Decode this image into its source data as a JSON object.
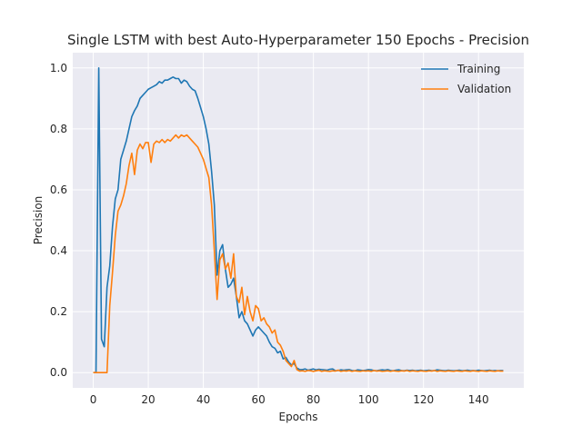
{
  "chart_data": {
    "type": "line",
    "title": "Single LSTM with best Auto-Hyperparameter 150 Epochs - Precision",
    "xlabel": "Epochs",
    "ylabel": "Precision",
    "xlim": [
      -7.45,
      156.45
    ],
    "ylim": [
      -0.05,
      1.05
    ],
    "xticks": [
      0,
      20,
      40,
      60,
      80,
      100,
      120,
      140
    ],
    "yticks": [
      0.0,
      0.2,
      0.4,
      0.6,
      0.8,
      1.0
    ],
    "ytick_labels": [
      "0.0",
      "0.2",
      "0.4",
      "0.6",
      "0.8",
      "1.0"
    ],
    "grid": true,
    "legend_position": "top-right",
    "series": [
      {
        "name": "Training",
        "color": "#1f77b4",
        "points": [
          [
            0,
            0.0
          ],
          [
            1,
            0.0
          ],
          [
            2,
            1.0
          ],
          [
            3,
            0.11
          ],
          [
            4,
            0.085
          ],
          [
            5,
            0.28
          ],
          [
            6,
            0.35
          ],
          [
            7,
            0.48
          ],
          [
            8,
            0.57
          ],
          [
            9,
            0.6
          ],
          [
            10,
            0.7
          ],
          [
            11,
            0.73
          ],
          [
            12,
            0.76
          ],
          [
            13,
            0.8
          ],
          [
            14,
            0.84
          ],
          [
            15,
            0.86
          ],
          [
            16,
            0.875
          ],
          [
            17,
            0.9
          ],
          [
            18,
            0.91
          ],
          [
            19,
            0.92
          ],
          [
            20,
            0.93
          ],
          [
            21,
            0.935
          ],
          [
            22,
            0.94
          ],
          [
            23,
            0.945
          ],
          [
            24,
            0.955
          ],
          [
            25,
            0.95
          ],
          [
            26,
            0.96
          ],
          [
            27,
            0.96
          ],
          [
            28,
            0.965
          ],
          [
            29,
            0.97
          ],
          [
            30,
            0.965
          ],
          [
            31,
            0.965
          ],
          [
            32,
            0.95
          ],
          [
            33,
            0.96
          ],
          [
            34,
            0.955
          ],
          [
            35,
            0.94
          ],
          [
            36,
            0.93
          ],
          [
            37,
            0.925
          ],
          [
            38,
            0.9
          ],
          [
            39,
            0.87
          ],
          [
            40,
            0.84
          ],
          [
            41,
            0.8
          ],
          [
            42,
            0.75
          ],
          [
            43,
            0.66
          ],
          [
            44,
            0.55
          ],
          [
            45,
            0.32
          ],
          [
            46,
            0.4
          ],
          [
            47,
            0.42
          ],
          [
            48,
            0.34
          ],
          [
            49,
            0.28
          ],
          [
            50,
            0.29
          ],
          [
            51,
            0.31
          ],
          [
            52,
            0.25
          ],
          [
            53,
            0.18
          ],
          [
            54,
            0.2
          ],
          [
            55,
            0.17
          ],
          [
            56,
            0.16
          ],
          [
            57,
            0.14
          ],
          [
            58,
            0.12
          ],
          [
            59,
            0.14
          ],
          [
            60,
            0.15
          ],
          [
            61,
            0.14
          ],
          [
            62,
            0.13
          ],
          [
            63,
            0.12
          ],
          [
            64,
            0.1
          ],
          [
            65,
            0.085
          ],
          [
            66,
            0.08
          ],
          [
            67,
            0.065
          ],
          [
            68,
            0.07
          ],
          [
            69,
            0.045
          ],
          [
            70,
            0.05
          ],
          [
            71,
            0.035
          ],
          [
            72,
            0.025
          ],
          [
            73,
            0.03
          ],
          [
            74,
            0.015
          ],
          [
            75,
            0.01
          ],
          [
            76,
            0.01
          ],
          [
            77,
            0.012
          ],
          [
            78,
            0.008
          ],
          [
            79,
            0.01
          ],
          [
            80,
            0.012
          ],
          [
            81,
            0.009
          ],
          [
            82,
            0.011
          ],
          [
            83,
            0.01
          ],
          [
            84,
            0.009
          ],
          [
            85,
            0.008
          ],
          [
            86,
            0.011
          ],
          [
            87,
            0.012
          ],
          [
            88,
            0.006
          ],
          [
            89,
            0.007
          ],
          [
            90,
            0.009
          ],
          [
            91,
            0.008
          ],
          [
            92,
            0.009
          ],
          [
            93,
            0.01
          ],
          [
            94,
            0.007
          ],
          [
            95,
            0.006
          ],
          [
            96,
            0.009
          ],
          [
            97,
            0.008
          ],
          [
            98,
            0.007
          ],
          [
            99,
            0.008
          ],
          [
            100,
            0.01
          ],
          [
            101,
            0.009
          ],
          [
            102,
            0.007
          ],
          [
            103,
            0.006
          ],
          [
            104,
            0.008
          ],
          [
            105,
            0.009
          ],
          [
            106,
            0.008
          ],
          [
            107,
            0.01
          ],
          [
            108,
            0.007
          ],
          [
            109,
            0.006
          ],
          [
            110,
            0.008
          ],
          [
            111,
            0.009
          ],
          [
            112,
            0.007
          ],
          [
            113,
            0.006
          ],
          [
            114,
            0.008
          ],
          [
            115,
            0.007
          ],
          [
            116,
            0.008
          ],
          [
            117,
            0.006
          ],
          [
            118,
            0.007
          ],
          [
            119,
            0.008
          ],
          [
            120,
            0.006
          ],
          [
            121,
            0.007
          ],
          [
            122,
            0.008
          ],
          [
            123,
            0.006
          ],
          [
            124,
            0.007
          ],
          [
            125,
            0.009
          ],
          [
            126,
            0.008
          ],
          [
            127,
            0.007
          ],
          [
            128,
            0.006
          ],
          [
            129,
            0.008
          ],
          [
            130,
            0.007
          ],
          [
            131,
            0.006
          ],
          [
            132,
            0.007
          ],
          [
            133,
            0.008
          ],
          [
            134,
            0.006
          ],
          [
            135,
            0.007
          ],
          [
            136,
            0.008
          ],
          [
            137,
            0.006
          ],
          [
            138,
            0.007
          ],
          [
            139,
            0.006
          ],
          [
            140,
            0.008
          ],
          [
            141,
            0.007
          ],
          [
            142,
            0.006
          ],
          [
            143,
            0.007
          ],
          [
            144,
            0.008
          ],
          [
            145,
            0.006
          ],
          [
            146,
            0.007
          ],
          [
            147,
            0.006
          ],
          [
            148,
            0.007
          ],
          [
            149,
            0.007
          ]
        ]
      },
      {
        "name": "Validation",
        "color": "#ff7f0e",
        "points": [
          [
            0,
            0.0
          ],
          [
            1,
            0.0
          ],
          [
            2,
            0.0
          ],
          [
            3,
            0.0
          ],
          [
            4,
            0.0
          ],
          [
            5,
            0.0
          ],
          [
            6,
            0.22
          ],
          [
            7,
            0.33
          ],
          [
            8,
            0.45
          ],
          [
            9,
            0.53
          ],
          [
            10,
            0.55
          ],
          [
            11,
            0.58
          ],
          [
            12,
            0.62
          ],
          [
            13,
            0.68
          ],
          [
            14,
            0.72
          ],
          [
            15,
            0.65
          ],
          [
            16,
            0.73
          ],
          [
            17,
            0.75
          ],
          [
            18,
            0.735
          ],
          [
            19,
            0.755
          ],
          [
            20,
            0.755
          ],
          [
            21,
            0.69
          ],
          [
            22,
            0.75
          ],
          [
            23,
            0.76
          ],
          [
            24,
            0.755
          ],
          [
            25,
            0.765
          ],
          [
            26,
            0.755
          ],
          [
            27,
            0.765
          ],
          [
            28,
            0.76
          ],
          [
            29,
            0.77
          ],
          [
            30,
            0.78
          ],
          [
            31,
            0.77
          ],
          [
            32,
            0.78
          ],
          [
            33,
            0.775
          ],
          [
            34,
            0.78
          ],
          [
            35,
            0.77
          ],
          [
            36,
            0.76
          ],
          [
            37,
            0.75
          ],
          [
            38,
            0.74
          ],
          [
            39,
            0.72
          ],
          [
            40,
            0.7
          ],
          [
            41,
            0.67
          ],
          [
            42,
            0.64
          ],
          [
            43,
            0.55
          ],
          [
            44,
            0.4
          ],
          [
            45,
            0.24
          ],
          [
            46,
            0.37
          ],
          [
            47,
            0.39
          ],
          [
            48,
            0.34
          ],
          [
            49,
            0.36
          ],
          [
            50,
            0.31
          ],
          [
            51,
            0.39
          ],
          [
            52,
            0.25
          ],
          [
            53,
            0.23
          ],
          [
            54,
            0.28
          ],
          [
            55,
            0.19
          ],
          [
            56,
            0.25
          ],
          [
            57,
            0.2
          ],
          [
            58,
            0.17
          ],
          [
            59,
            0.22
          ],
          [
            60,
            0.21
          ],
          [
            61,
            0.17
          ],
          [
            62,
            0.18
          ],
          [
            63,
            0.16
          ],
          [
            64,
            0.15
          ],
          [
            65,
            0.13
          ],
          [
            66,
            0.14
          ],
          [
            67,
            0.1
          ],
          [
            68,
            0.09
          ],
          [
            69,
            0.07
          ],
          [
            70,
            0.04
          ],
          [
            71,
            0.03
          ],
          [
            72,
            0.02
          ],
          [
            73,
            0.04
          ],
          [
            74,
            0.01
          ],
          [
            75,
            0.005
          ],
          [
            76,
            0.006
          ],
          [
            77,
            0.004
          ],
          [
            78,
            0.007
          ],
          [
            79,
            0.006
          ],
          [
            80,
            0.004
          ],
          [
            81,
            0.006
          ],
          [
            82,
            0.008
          ],
          [
            83,
            0.004
          ],
          [
            84,
            0.006
          ],
          [
            85,
            0.005
          ],
          [
            86,
            0.004
          ],
          [
            87,
            0.006
          ],
          [
            88,
            0.005
          ],
          [
            89,
            0.008
          ],
          [
            90,
            0.004
          ],
          [
            91,
            0.006
          ],
          [
            92,
            0.005
          ],
          [
            93,
            0.007
          ],
          [
            94,
            0.004
          ],
          [
            95,
            0.006
          ],
          [
            96,
            0.005
          ],
          [
            97,
            0.004
          ],
          [
            98,
            0.006
          ],
          [
            99,
            0.005
          ],
          [
            100,
            0.006
          ],
          [
            101,
            0.004
          ],
          [
            102,
            0.007
          ],
          [
            103,
            0.005
          ],
          [
            104,
            0.006
          ],
          [
            105,
            0.004
          ],
          [
            106,
            0.005
          ],
          [
            107,
            0.006
          ],
          [
            108,
            0.004
          ],
          [
            109,
            0.006
          ],
          [
            110,
            0.005
          ],
          [
            111,
            0.004
          ],
          [
            112,
            0.006
          ],
          [
            113,
            0.005
          ],
          [
            114,
            0.007
          ],
          [
            115,
            0.004
          ],
          [
            116,
            0.006
          ],
          [
            117,
            0.005
          ],
          [
            118,
            0.004
          ],
          [
            119,
            0.006
          ],
          [
            120,
            0.005
          ],
          [
            121,
            0.004
          ],
          [
            122,
            0.006
          ],
          [
            123,
            0.005
          ],
          [
            124,
            0.007
          ],
          [
            125,
            0.004
          ],
          [
            126,
            0.006
          ],
          [
            127,
            0.005
          ],
          [
            128,
            0.004
          ],
          [
            129,
            0.006
          ],
          [
            130,
            0.005
          ],
          [
            131,
            0.004
          ],
          [
            132,
            0.006
          ],
          [
            133,
            0.005
          ],
          [
            134,
            0.004
          ],
          [
            135,
            0.006
          ],
          [
            136,
            0.005
          ],
          [
            137,
            0.004
          ],
          [
            138,
            0.006
          ],
          [
            139,
            0.005
          ],
          [
            140,
            0.004
          ],
          [
            141,
            0.006
          ],
          [
            142,
            0.005
          ],
          [
            143,
            0.004
          ],
          [
            144,
            0.006
          ],
          [
            145,
            0.005
          ],
          [
            146,
            0.004
          ],
          [
            147,
            0.006
          ],
          [
            148,
            0.005
          ],
          [
            149,
            0.005
          ]
        ]
      }
    ]
  }
}
